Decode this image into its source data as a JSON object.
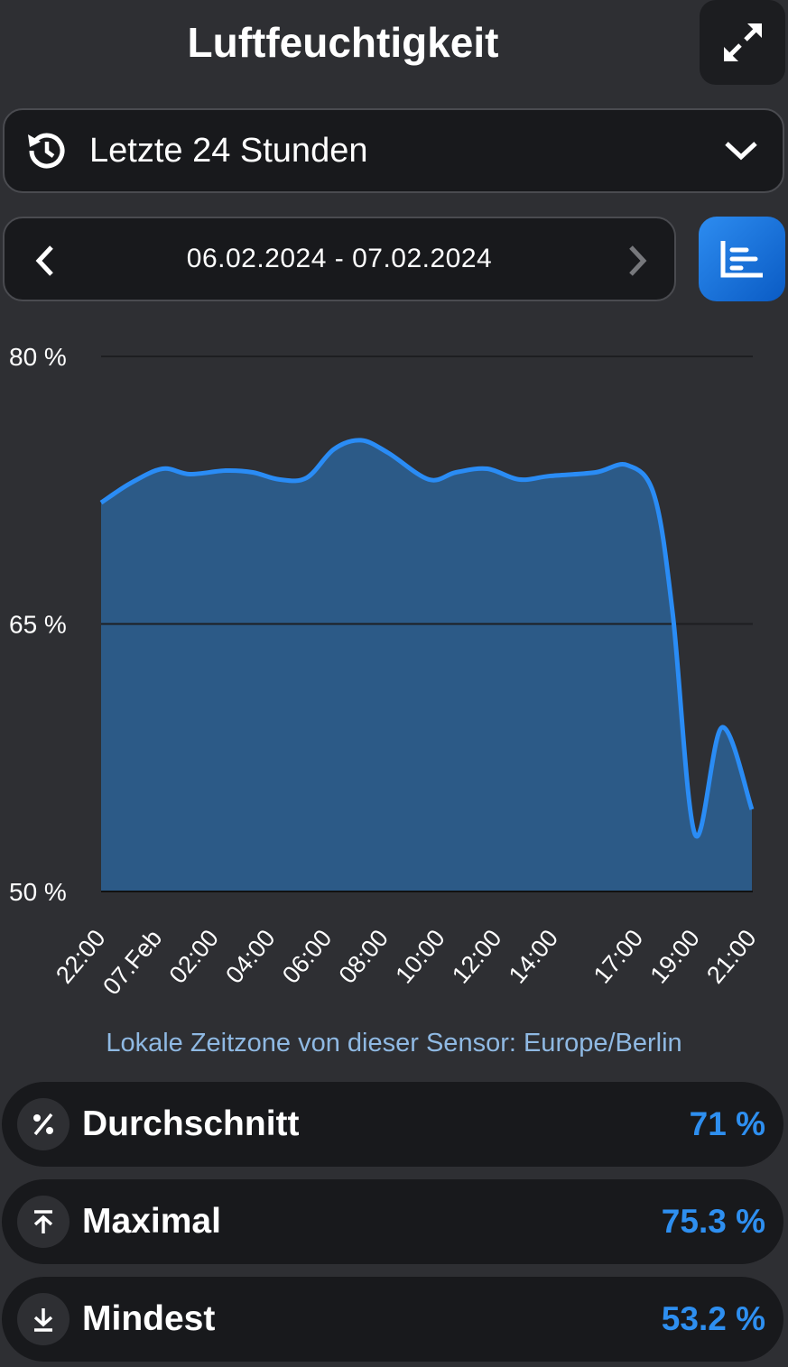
{
  "header": {
    "title": "Luftfeuchtigkeit",
    "expand_icon": "expand-arrows-icon"
  },
  "range": {
    "label": "Letzte 24 Stunden",
    "icon": "history-icon"
  },
  "dates": {
    "label": "06.02.2024 - 07.02.2024"
  },
  "colors": {
    "accent": "#2e8ff0",
    "fill": "#2c5a87",
    "line": "#2a8cf5"
  },
  "chart_data": {
    "type": "area",
    "ylabel_unit": "%",
    "ylim": [
      50,
      80
    ],
    "yticks": [
      {
        "v": 50,
        "label": "50 %"
      },
      {
        "v": 65,
        "label": "65 %"
      },
      {
        "v": 80,
        "label": "80 %"
      }
    ],
    "xlim": [
      0,
      23
    ],
    "xticks": [
      {
        "h": 0,
        "label": "22:00"
      },
      {
        "h": 2,
        "label": "07.Feb"
      },
      {
        "h": 4,
        "label": "02:00"
      },
      {
        "h": 6,
        "label": "04:00"
      },
      {
        "h": 8,
        "label": "06:00"
      },
      {
        "h": 10,
        "label": "08:00"
      },
      {
        "h": 12,
        "label": "10:00"
      },
      {
        "h": 14,
        "label": "12:00"
      },
      {
        "h": 16,
        "label": "14:00"
      },
      {
        "h": 19,
        "label": "17:00"
      },
      {
        "h": 21,
        "label": "19:00"
      },
      {
        "h": 23,
        "label": "21:00"
      }
    ],
    "x_unit": "hours since 06.02 22:00",
    "points": [
      [
        0,
        71.8
      ],
      [
        1.05,
        72.9
      ],
      [
        2.17,
        73.7
      ],
      [
        3.13,
        73.4
      ],
      [
        4.4,
        73.6
      ],
      [
        5.36,
        73.5
      ],
      [
        6.3,
        73.1
      ],
      [
        7.27,
        73.2
      ],
      [
        8.23,
        74.8
      ],
      [
        9.18,
        75.3
      ],
      [
        10.14,
        74.6
      ],
      [
        11.58,
        73.1
      ],
      [
        12.54,
        73.5
      ],
      [
        13.65,
        73.7
      ],
      [
        14.77,
        73.1
      ],
      [
        15.88,
        73.3
      ],
      [
        17.48,
        73.5
      ],
      [
        18.6,
        73.9
      ],
      [
        19.55,
        72.2
      ],
      [
        20.2,
        65.6
      ],
      [
        20.99,
        53.2
      ],
      [
        21.94,
        59.2
      ],
      [
        23,
        54.6
      ]
    ]
  },
  "timezone": "Lokale Zeitzone von dieser Sensor: Europe/Berlin",
  "stats": [
    {
      "name": "Durchschnitt",
      "value": "71 %",
      "icon": "percent-icon"
    },
    {
      "name": "Maximal",
      "value": "75.3 %",
      "icon": "arrow-up-to-line-icon"
    },
    {
      "name": "Mindest",
      "value": "53.2 %",
      "icon": "arrow-down-to-line-icon"
    }
  ]
}
